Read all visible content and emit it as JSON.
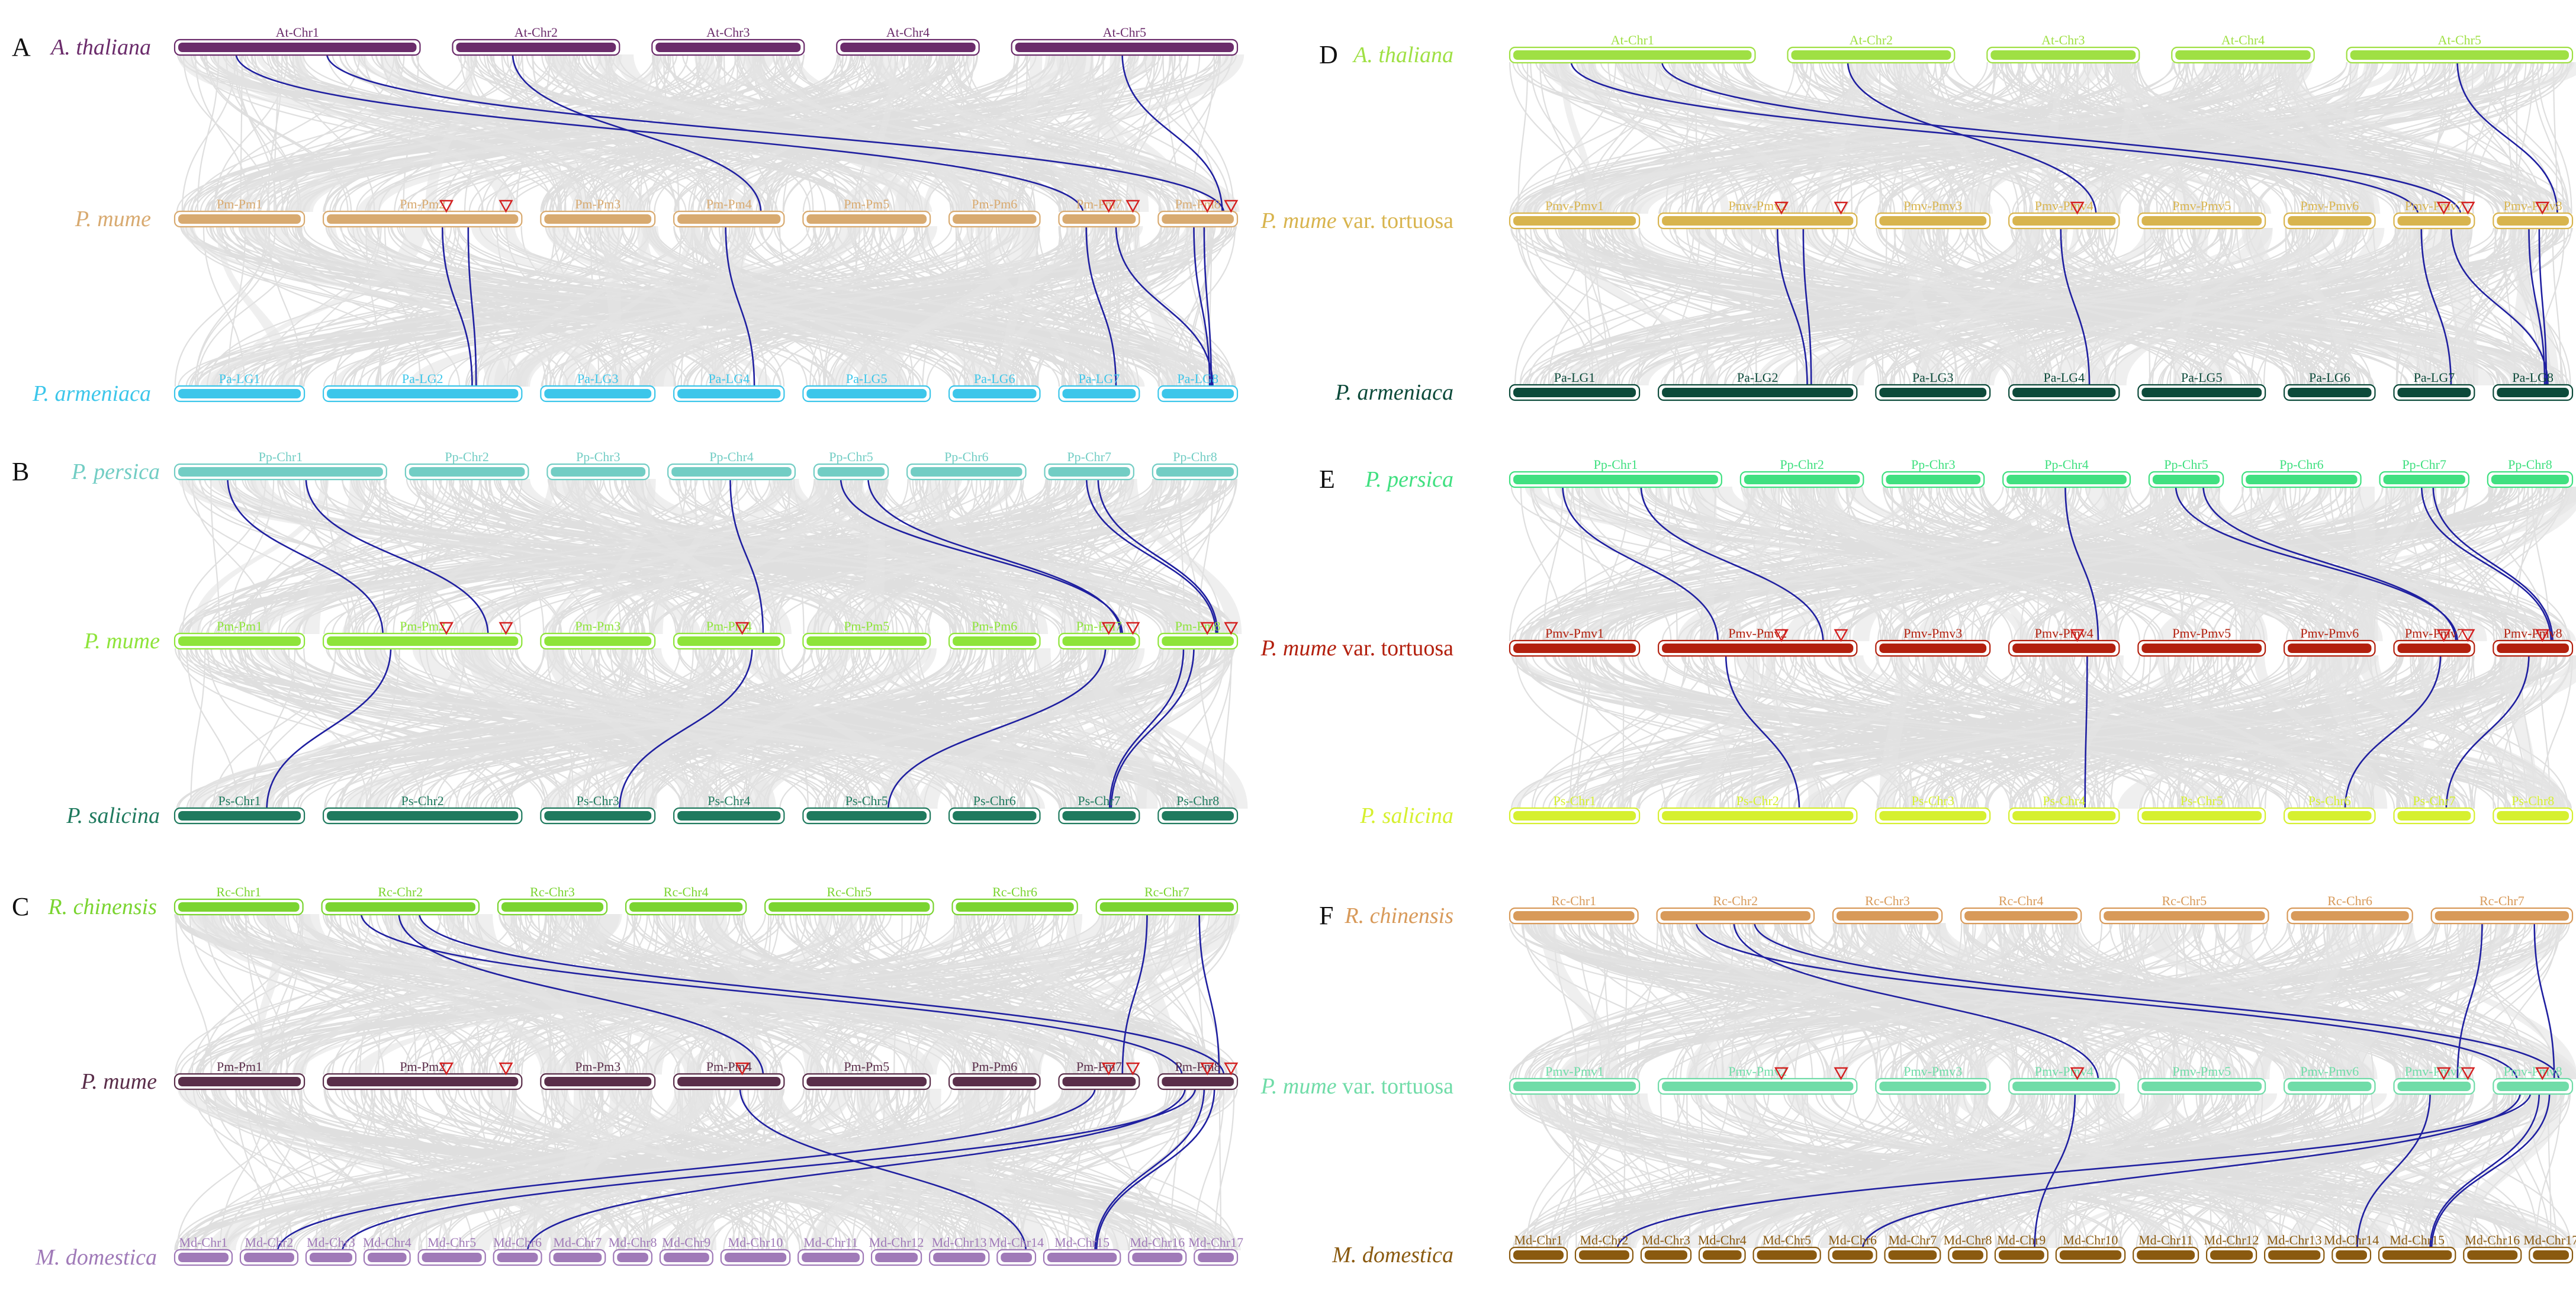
{
  "figure": {
    "colors": {
      "link_gray": "#d9d9d9",
      "highlight_line": "#1f1fa0",
      "marker": "#d42020"
    },
    "panels": [
      {
        "id": "A",
        "rows": [
          {
            "species": "A. thaliana",
            "color": "#6b2c6b",
            "chromosomes": [
              "At-Chr1",
              "At-Chr2",
              "At-Chr3",
              "At-Chr4",
              "At-Chr5"
            ]
          },
          {
            "species": "P. mume",
            "color": "#d8aa70",
            "chromosomes": [
              "Pm-Pm1",
              "Pm-Pm2",
              "Pm-Pm3",
              "Pm-Pm4",
              "Pm-Pm5",
              "Pm-Pm6",
              "Pm-Pm7",
              "Pm-Pm8"
            ]
          },
          {
            "species": "P. armeniaca",
            "color": "#3cc6ea",
            "chromosomes": [
              "Pa-LG1",
              "Pa-LG2",
              "Pa-LG3",
              "Pa-LG4",
              "Pa-LG5",
              "Pa-LG6",
              "Pa-LG7",
              "Pa-LG8"
            ]
          }
        ]
      },
      {
        "id": "B",
        "rows": [
          {
            "species": "P. persica",
            "color": "#72cdc4",
            "chromosomes": [
              "Pp-Chr1",
              "Pp-Chr2",
              "Pp-Chr3",
              "Pp-Chr4",
              "Pp-Chr5",
              "Pp-Chr6",
              "Pp-Chr7",
              "Pp-Chr8"
            ]
          },
          {
            "species": "P. mume",
            "color": "#8ee43a",
            "chromosomes": [
              "Pm-Pm1",
              "Pm-Pm2",
              "Pm-Pm3",
              "Pm-Pm4",
              "Pm-Pm5",
              "Pm-Pm6",
              "Pm-Pm7",
              "Pm-Pm8"
            ]
          },
          {
            "species": "P. salicina",
            "color": "#1f7a5e",
            "chromosomes": [
              "Ps-Chr1",
              "Ps-Chr2",
              "Ps-Chr3",
              "Ps-Chr4",
              "Ps-Chr5",
              "Ps-Chr6",
              "Ps-Chr7",
              "Ps-Chr8"
            ]
          }
        ]
      },
      {
        "id": "C",
        "rows": [
          {
            "species": "R. chinensis",
            "color": "#7ad430",
            "chromosomes": [
              "Rc-Chr1",
              "Rc-Chr2",
              "Rc-Chr3",
              "Rc-Chr4",
              "Rc-Chr5",
              "Rc-Chr6",
              "Rc-Chr7"
            ]
          },
          {
            "species": "P. mume",
            "color": "#5a2e4a",
            "chromosomes": [
              "Pm-Pm1",
              "Pm-Pm2",
              "Pm-Pm3",
              "Pm-Pm4",
              "Pm-Pm5",
              "Pm-Pm6",
              "Pm-Pm7",
              "Pm-Pm8"
            ]
          },
          {
            "species": "M. domestica",
            "color": "#a07ab8",
            "chromosomes": [
              "Md-Chr1",
              "Md-Chr2",
              "Md-Chr3",
              "Md-Chr4",
              "Md-Chr5",
              "Md-Chr6",
              "Md-Chr7",
              "Md-Chr8",
              "Md-Chr9",
              "Md-Chr10",
              "Md-Chr11",
              "Md-Chr12",
              "Md-Chr13",
              "Md-Chr14",
              "Md-Chr15",
              "Md-Chr16",
              "Md-Chr17"
            ]
          }
        ]
      },
      {
        "id": "D",
        "rows": [
          {
            "species": "A. thaliana",
            "color": "#9fe044",
            "chromosomes": [
              "At-Chr1",
              "At-Chr2",
              "At-Chr3",
              "At-Chr4",
              "At-Chr5"
            ]
          },
          {
            "species": "P. mume",
            "suffix": " var. tortuosa",
            "color": "#d8b44e",
            "chromosomes": [
              "Pmv-Pmv1",
              "Pmv-Pmv2",
              "Pmv-Pmv3",
              "Pmv-Pmv4",
              "Pmv-Pmv5",
              "Pmv-Pmv6",
              "Pmv-Pmv7",
              "Pmv-Pmv8"
            ]
          },
          {
            "species": "P. armeniaca",
            "color": "#0c4a3a",
            "chromosomes": [
              "Pa-LG1",
              "Pa-LG2",
              "Pa-LG3",
              "Pa-LG4",
              "Pa-LG5",
              "Pa-LG6",
              "Pa-LG7",
              "Pa-LG8"
            ]
          }
        ]
      },
      {
        "id": "E",
        "rows": [
          {
            "species": "P. persica",
            "color": "#40e080",
            "chromosomes": [
              "Pp-Chr1",
              "Pp-Chr2",
              "Pp-Chr3",
              "Pp-Chr4",
              "Pp-Chr5",
              "Pp-Chr6",
              "Pp-Chr7",
              "Pp-Chr8"
            ]
          },
          {
            "species": "P. mume",
            "suffix": " var. tortuosa",
            "color": "#b3200e",
            "chromosomes": [
              "Pmv-Pmv1",
              "Pmv-Pmv2",
              "Pmv-Pmv3",
              "Pmv-Pmv4",
              "Pmv-Pmv5",
              "Pmv-Pmv6",
              "Pmv-Pmv7",
              "Pmv-Pmv8"
            ]
          },
          {
            "species": "P. salicina",
            "color": "#d6f030",
            "chromosomes": [
              "Ps-Chr1",
              "Ps-Chr2",
              "Ps-Chr3",
              "Ps-Chr4",
              "Ps-Chr5",
              "Ps-Chr6",
              "Ps-Chr7",
              "Ps-Chr8"
            ]
          }
        ]
      },
      {
        "id": "F",
        "rows": [
          {
            "species": "R. chinensis",
            "color": "#d89a5a",
            "chromosomes": [
              "Rc-Chr1",
              "Rc-Chr2",
              "Rc-Chr3",
              "Rc-Chr4",
              "Rc-Chr5",
              "Rc-Chr6",
              "Rc-Chr7"
            ]
          },
          {
            "species": "P. mume",
            "suffix": " var. tortuosa",
            "color": "#70dca8",
            "chromosomes": [
              "Pmv-Pmv1",
              "Pmv-Pmv2",
              "Pmv-Pmv3",
              "Pmv-Pmv4",
              "Pmv-Pmv5",
              "Pmv-Pmv6",
              "Pmv-Pmv7",
              "Pmv-Pmv8"
            ]
          },
          {
            "species": "M. domestica",
            "color": "#8a5a10",
            "chromosomes": [
              "Md-Chr1",
              "Md-Chr2",
              "Md-Chr3",
              "Md-Chr4",
              "Md-Chr5",
              "Md-Chr6",
              "Md-Chr7",
              "Md-Chr8",
              "Md-Chr9",
              "Md-Chr10",
              "Md-Chr11",
              "Md-Chr12",
              "Md-Chr13",
              "Md-Chr14",
              "Md-Chr15",
              "Md-Chr16",
              "Md-Chr17"
            ]
          }
        ]
      }
    ],
    "highlight_links": {
      "A": [
        [
          0,
          0,
          1,
          6
        ],
        [
          0,
          0,
          1,
          7
        ],
        [
          0,
          4,
          1,
          7
        ],
        [
          0,
          1,
          1,
          3
        ],
        [
          1,
          1,
          2,
          1
        ],
        [
          1,
          1,
          2,
          1
        ],
        [
          1,
          3,
          2,
          3
        ],
        [
          1,
          6,
          2,
          6
        ],
        [
          1,
          6,
          2,
          7
        ],
        [
          1,
          7,
          2,
          7
        ],
        [
          1,
          7,
          2,
          7
        ]
      ],
      "B": [
        [
          0,
          0,
          1,
          1
        ],
        [
          0,
          0,
          1,
          1
        ],
        [
          0,
          3,
          1,
          3
        ],
        [
          0,
          4,
          1,
          6
        ],
        [
          0,
          4,
          1,
          6
        ],
        [
          0,
          6,
          1,
          7
        ],
        [
          0,
          6,
          1,
          7
        ],
        [
          1,
          1,
          2,
          0
        ],
        [
          1,
          3,
          2,
          2
        ],
        [
          1,
          6,
          2,
          4
        ],
        [
          1,
          7,
          2,
          6
        ],
        [
          1,
          7,
          2,
          6
        ]
      ],
      "C": [
        [
          0,
          1,
          1,
          7
        ],
        [
          0,
          1,
          1,
          7
        ],
        [
          0,
          1,
          1,
          3
        ],
        [
          0,
          6,
          1,
          6
        ],
        [
          0,
          6,
          1,
          7
        ],
        [
          1,
          3,
          2,
          13
        ],
        [
          1,
          7,
          2,
          2
        ],
        [
          1,
          7,
          2,
          5
        ],
        [
          1,
          7,
          2,
          14
        ],
        [
          1,
          7,
          2,
          14
        ],
        [
          1,
          6,
          2,
          1
        ]
      ],
      "D": [
        [
          0,
          0,
          1,
          6
        ],
        [
          0,
          0,
          1,
          6
        ],
        [
          0,
          4,
          1,
          7
        ],
        [
          0,
          1,
          1,
          3
        ],
        [
          1,
          1,
          2,
          1
        ],
        [
          1,
          1,
          2,
          1
        ],
        [
          1,
          3,
          2,
          3
        ],
        [
          1,
          6,
          2,
          6
        ],
        [
          1,
          6,
          2,
          7
        ],
        [
          1,
          7,
          2,
          7
        ],
        [
          1,
          7,
          2,
          7
        ]
      ],
      "E": [
        [
          0,
          0,
          1,
          1
        ],
        [
          0,
          0,
          1,
          1
        ],
        [
          0,
          3,
          1,
          3
        ],
        [
          0,
          4,
          1,
          6
        ],
        [
          0,
          4,
          1,
          6
        ],
        [
          0,
          6,
          1,
          7
        ],
        [
          0,
          6,
          1,
          7
        ],
        [
          1,
          1,
          2,
          1
        ],
        [
          1,
          3,
          2,
          3
        ],
        [
          1,
          6,
          2,
          5
        ],
        [
          1,
          7,
          2,
          6
        ]
      ],
      "F": [
        [
          0,
          1,
          1,
          7
        ],
        [
          0,
          1,
          1,
          7
        ],
        [
          0,
          1,
          1,
          3
        ],
        [
          0,
          6,
          1,
          6
        ],
        [
          0,
          6,
          1,
          7
        ],
        [
          1,
          3,
          2,
          8
        ],
        [
          1,
          7,
          2,
          1
        ],
        [
          1,
          7,
          2,
          5
        ],
        [
          1,
          7,
          2,
          14
        ],
        [
          1,
          7,
          2,
          14
        ],
        [
          1,
          6,
          2,
          13
        ]
      ]
    },
    "markers": {
      "A": [
        [
          1,
          1
        ],
        [
          1,
          1
        ],
        [
          1,
          6
        ],
        [
          1,
          6
        ],
        [
          1,
          7
        ],
        [
          1,
          7
        ]
      ],
      "B": [
        [
          1,
          1
        ],
        [
          1,
          1
        ],
        [
          1,
          3
        ],
        [
          1,
          6
        ],
        [
          1,
          6
        ],
        [
          1,
          7
        ],
        [
          1,
          7
        ]
      ],
      "C": [
        [
          1,
          1
        ],
        [
          1,
          1
        ],
        [
          1,
          3
        ],
        [
          1,
          6
        ],
        [
          1,
          6
        ],
        [
          1,
          7
        ],
        [
          1,
          7
        ]
      ],
      "D": [
        [
          1,
          1
        ],
        [
          1,
          1
        ],
        [
          1,
          3
        ],
        [
          1,
          6
        ],
        [
          1,
          6
        ],
        [
          1,
          7
        ]
      ],
      "E": [
        [
          1,
          1
        ],
        [
          1,
          1
        ],
        [
          1,
          3
        ],
        [
          1,
          6
        ],
        [
          1,
          6
        ],
        [
          1,
          7
        ]
      ],
      "F": [
        [
          1,
          1
        ],
        [
          1,
          1
        ],
        [
          1,
          3
        ],
        [
          1,
          6
        ],
        [
          1,
          6
        ],
        [
          1,
          7
        ]
      ]
    }
  }
}
